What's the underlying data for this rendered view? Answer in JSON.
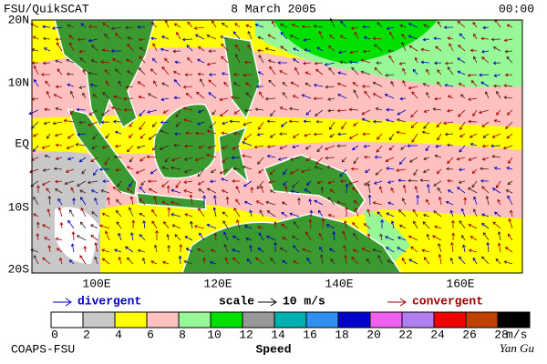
{
  "header": {
    "left": "FSU/QuikSCAT",
    "center": "8 March 2005",
    "right": "00:00"
  },
  "map": {
    "lat_labels": [
      "20N",
      "10N",
      "EQ",
      "10S",
      "20S"
    ],
    "lon_labels": [
      "100E",
      "120E",
      "140E",
      "160E"
    ]
  },
  "legend": {
    "divergent": "divergent",
    "scale": "scale",
    "scale_value": "10 m/s",
    "convergent": "convergent"
  },
  "colorbar": {
    "ticks": [
      0,
      2,
      4,
      6,
      8,
      10,
      12,
      14,
      16,
      18,
      20,
      22,
      24,
      26,
      28
    ],
    "unit": "m/s",
    "label": "Speed",
    "colors": [
      "#ffffff",
      "#c8c8c8",
      "#ffff00",
      "#ffc0c0",
      "#98f898",
      "#00e000",
      "#989898",
      "#00b0b0",
      "#3090f0",
      "#0000c8",
      "#f060f0",
      "#b080f0",
      "#f00000",
      "#c04000",
      "#000000"
    ]
  },
  "footer": {
    "left": "COAPS-FSU",
    "right": "Yan Gu"
  }
}
